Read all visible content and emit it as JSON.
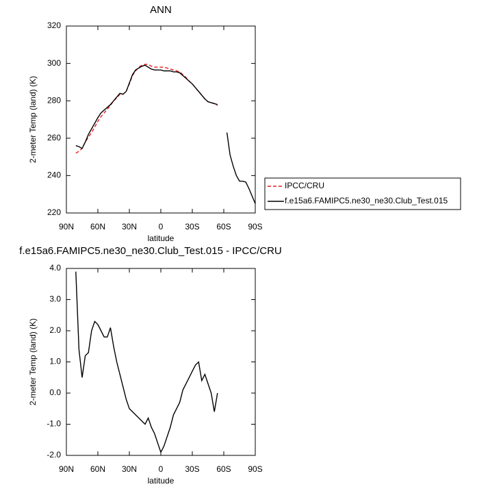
{
  "chart_data": [
    {
      "type": "line",
      "title": "ANN",
      "x_label": "latitude",
      "y_label": "2-meter Temp (land) (K)",
      "x": [
        81,
        78,
        75,
        72,
        69,
        66,
        63,
        60,
        57,
        54,
        51,
        48,
        45,
        42,
        39,
        36,
        33,
        30,
        27,
        24,
        21,
        18,
        15,
        12,
        9,
        6,
        3,
        0,
        -3,
        -6,
        -9,
        -12,
        -15,
        -18,
        -21,
        -24,
        -27,
        -30,
        -33,
        -36,
        -39,
        -42,
        -45,
        -48,
        -51,
        -54,
        -57,
        -60,
        -63,
        -66,
        -69,
        -72,
        -75,
        -78,
        -81,
        -84,
        -87,
        -90
      ],
      "series": [
        {
          "name": "IPCC/CRU",
          "color": "#e41a1c",
          "dash": "dashed",
          "values": [
            252,
            253,
            254.5,
            258,
            260.5,
            263,
            266,
            269,
            271.5,
            273.5,
            275.5,
            277.5,
            280,
            281.5,
            283.5,
            283.5,
            285,
            289,
            293.5,
            296,
            298,
            299,
            299.5,
            299.5,
            298.5,
            298,
            298,
            298,
            298,
            297.5,
            297,
            296.5,
            296,
            295.5,
            294,
            292.5,
            290.5,
            289,
            287,
            285,
            283,
            281,
            279.5,
            279,
            278.5,
            277.5,
            null,
            null,
            null,
            null,
            null,
            null,
            null,
            null,
            null,
            null,
            null,
            null
          ]
        },
        {
          "name": "f.e15a6.FAMIPC5.ne30_ne30.Club_Test.015",
          "color": "#000000",
          "dash": "solid",
          "values": [
            256,
            255.5,
            254.5,
            258,
            262,
            265,
            268,
            271,
            273.5,
            275,
            276.5,
            278,
            280,
            282,
            284,
            283.5,
            285,
            289.5,
            294,
            296.5,
            297.5,
            298.5,
            299,
            298,
            297,
            296.5,
            296.5,
            296.5,
            296,
            296,
            296,
            295.5,
            295.5,
            295,
            293.5,
            292,
            290.5,
            289,
            287,
            285,
            283,
            281,
            279.5,
            279,
            278.5,
            278,
            null,
            null,
            263,
            251,
            245,
            240,
            237,
            237,
            236.5,
            233,
            229,
            225
          ]
        }
      ],
      "xlim": [
        90,
        -90
      ],
      "xticks": [
        {
          "value": 90,
          "label": "90N"
        },
        {
          "value": 60,
          "label": "60N"
        },
        {
          "value": 30,
          "label": "30N"
        },
        0,
        {
          "value": -30,
          "label": "30S"
        },
        {
          "value": -60,
          "label": "60S"
        },
        {
          "value": -90,
          "label": "90S"
        }
      ],
      "ylim": [
        220,
        320
      ],
      "yticks": [
        220,
        240,
        260,
        280,
        300,
        320
      ],
      "legend": "outside-right"
    },
    {
      "type": "line",
      "title": "f.e15a6.FAMIPC5.ne30_ne30.Club_Test.015 - IPCC/CRU",
      "x_label": "latitude",
      "y_label": "2-meter Temp (land) (K)",
      "x": [
        81,
        78,
        75,
        72,
        69,
        66,
        63,
        60,
        57,
        54,
        51,
        48,
        45,
        42,
        39,
        36,
        33,
        30,
        27,
        24,
        21,
        18,
        15,
        12,
        9,
        6,
        3,
        0,
        -3,
        -6,
        -9,
        -12,
        -15,
        -18,
        -21,
        -24,
        -27,
        -30,
        -33,
        -36,
        -39,
        -42,
        -45,
        -48,
        -51,
        -54
      ],
      "values": [
        3.9,
        1.4,
        0.5,
        1.2,
        1.3,
        2.0,
        2.3,
        2.2,
        2.0,
        1.8,
        1.8,
        2.1,
        1.5,
        1.0,
        0.6,
        0.2,
        -0.2,
        -0.5,
        -0.6,
        -0.7,
        -0.8,
        -0.9,
        -1.0,
        -0.8,
        -1.1,
        -1.3,
        -1.6,
        -1.9,
        -1.7,
        -1.4,
        -1.1,
        -0.7,
        -0.5,
        -0.3,
        0.1,
        0.3,
        0.5,
        0.7,
        0.9,
        1.0,
        0.4,
        0.6,
        0.3,
        0.0,
        -0.6,
        0.0
      ],
      "color": "#000000",
      "xlim": [
        90,
        -90
      ],
      "xticks": [
        {
          "value": 90,
          "label": "90N"
        },
        {
          "value": 60,
          "label": "60N"
        },
        {
          "value": 30,
          "label": "30N"
        },
        0,
        {
          "value": -30,
          "label": "30S"
        },
        {
          "value": -60,
          "label": "60S"
        },
        {
          "value": -90,
          "label": "90S"
        }
      ],
      "ylim": [
        -2,
        4
      ],
      "yticks": [
        {
          "value": -2,
          "label": "-2.0"
        },
        {
          "value": -1,
          "label": "-1.0"
        },
        {
          "value": 0,
          "label": "0.0"
        },
        {
          "value": 1,
          "label": "1.0"
        },
        {
          "value": 2,
          "label": "2.0"
        },
        {
          "value": 3,
          "label": "3.0"
        },
        {
          "value": 4,
          "label": "4.0"
        }
      ]
    }
  ]
}
